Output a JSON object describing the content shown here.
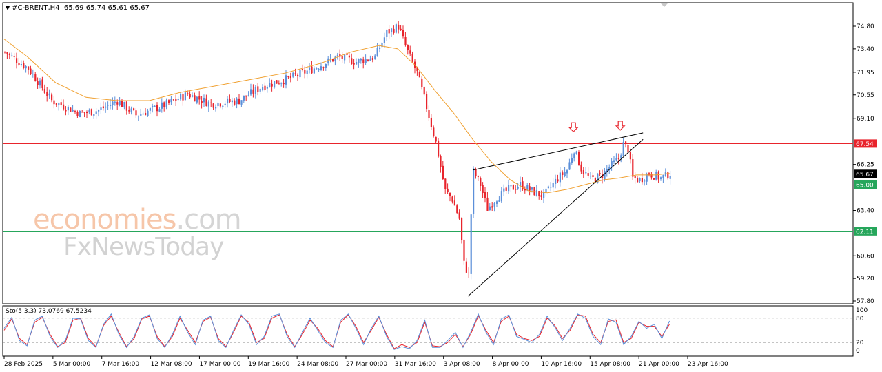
{
  "header": {
    "symbol": "#C-BRENT,H4",
    "ohlc": "65.69 65.74 65.61 65.67"
  },
  "stochastic": {
    "label": "Sto(5,3,3) 73.0769 67.5234",
    "axis_labels": [
      "100",
      "80",
      "20",
      "0"
    ]
  },
  "watermark": {
    "line1_main": "economies",
    "line1_tld": ".com",
    "line2": "FxNewsToday"
  },
  "price_markers": [
    {
      "label": "67.54",
      "value": 67.54,
      "color": "#e8242c"
    },
    {
      "label": "65.67",
      "value": 65.67,
      "color": "#000000"
    },
    {
      "label": "65.00",
      "value": 65.0,
      "color": "#26a65b"
    },
    {
      "label": "62.11",
      "value": 62.11,
      "color": "#26a65b"
    }
  ],
  "chart_data": {
    "type": "candlestick",
    "y_ticks": [
      "74.80",
      "73.40",
      "71.95",
      "70.55",
      "69.10",
      "66.25",
      "63.40",
      "60.60",
      "59.20",
      "57.80"
    ],
    "y_tick_values": [
      74.8,
      73.4,
      71.95,
      70.55,
      69.1,
      66.25,
      63.4,
      60.6,
      59.2,
      57.8
    ],
    "ylim": [
      57.8,
      75.0
    ],
    "x_labels": [
      "28 Feb 2025",
      "5 Mar 00:00",
      "7 Mar 16:00",
      "12 Mar 08:00",
      "17 Mar 00:00",
      "19 Mar 16:00",
      "24 Mar 08:00",
      "27 Mar 00:00",
      "31 Mar 16:00",
      "3 Apr 08:00",
      "8 Apr 00:00",
      "10 Apr 16:00",
      "15 Apr 08:00",
      "21 Apr 00:00",
      "23 Apr 16:00"
    ],
    "horizontal_levels": [
      {
        "value": 67.54,
        "color": "#e8242c"
      },
      {
        "value": 65.67,
        "color": "#c0c0c0"
      },
      {
        "value": 65.0,
        "color": "#26a65b"
      },
      {
        "value": 62.11,
        "color": "#26a65b"
      }
    ],
    "close_path": [
      [
        0,
        73.2
      ],
      [
        10,
        72.2
      ],
      [
        20,
        70.2
      ],
      [
        32,
        69.4
      ],
      [
        40,
        69.6
      ],
      [
        48,
        70.2
      ],
      [
        56,
        69.3
      ],
      [
        68,
        69.9
      ],
      [
        78,
        70.6
      ],
      [
        88,
        70.0
      ],
      [
        100,
        70.2
      ],
      [
        110,
        71.1
      ],
      [
        122,
        71.6
      ],
      [
        132,
        72.2
      ],
      [
        142,
        72.9
      ],
      [
        150,
        72.6
      ],
      [
        158,
        72.9
      ],
      [
        163,
        74.4
      ],
      [
        168,
        74.8
      ],
      [
        172,
        73.2
      ],
      [
        176,
        71.9
      ],
      [
        180,
        69.8
      ],
      [
        184,
        67.6
      ],
      [
        188,
        64.6
      ],
      [
        191,
        64.1
      ],
      [
        194,
        62.9
      ],
      [
        196,
        60.1
      ],
      [
        198,
        59.4
      ],
      [
        199,
        63.2
      ],
      [
        200,
        65.8
      ],
      [
        203,
        65.0
      ],
      [
        206,
        63.5
      ],
      [
        210,
        64.2
      ],
      [
        215,
        64.7
      ],
      [
        220,
        65.0
      ],
      [
        225,
        64.6
      ],
      [
        230,
        64.3
      ],
      [
        236,
        65.4
      ],
      [
        240,
        65.9
      ],
      [
        243,
        67.2
      ],
      [
        246,
        66.0
      ],
      [
        250,
        65.3
      ],
      [
        255,
        65.6
      ],
      [
        258,
        66.1
      ],
      [
        262,
        66.6
      ],
      [
        264,
        67.5
      ],
      [
        266,
        67.2
      ],
      [
        268,
        65.4
      ],
      [
        271,
        65.3
      ],
      [
        275,
        65.7
      ],
      [
        280,
        65.4
      ],
      [
        284,
        65.7
      ]
    ],
    "moving_average": [
      [
        0,
        74.0
      ],
      [
        10,
        72.9
      ],
      [
        22,
        71.3
      ],
      [
        35,
        70.4
      ],
      [
        48,
        70.2
      ],
      [
        62,
        70.2
      ],
      [
        75,
        70.7
      ],
      [
        90,
        71.1
      ],
      [
        105,
        71.5
      ],
      [
        120,
        71.9
      ],
      [
        135,
        72.5
      ],
      [
        148,
        73.2
      ],
      [
        160,
        73.6
      ],
      [
        168,
        73.4
      ],
      [
        176,
        72.3
      ],
      [
        184,
        70.8
      ],
      [
        192,
        69.4
      ],
      [
        200,
        67.8
      ],
      [
        208,
        66.4
      ],
      [
        216,
        65.3
      ],
      [
        224,
        64.6
      ],
      [
        232,
        64.5
      ],
      [
        240,
        64.7
      ],
      [
        248,
        65.0
      ],
      [
        256,
        65.3
      ],
      [
        262,
        65.4
      ],
      [
        270,
        65.6
      ],
      [
        278,
        65.6
      ],
      [
        284,
        65.7
      ]
    ],
    "trendlines": [
      {
        "from": [
          200,
          65.9
        ],
        "to": [
          268,
          68.2
        ]
      },
      {
        "from": [
          198,
          58.1
        ],
        "to": [
          268,
          67.8
        ]
      }
    ],
    "arrows": [
      {
        "x": 243,
        "value": 68.4,
        "color": "#e8242c"
      },
      {
        "x": 263,
        "value": 68.5,
        "color": "#e8242c"
      }
    ],
    "stochastic_series": [
      {
        "color": "#e8242c",
        "values": [
          50,
          78,
          30,
          15,
          70,
          82,
          40,
          10,
          20,
          75,
          80,
          30,
          10,
          62,
          85,
          45,
          10,
          30,
          78,
          85,
          35,
          10,
          35,
          80,
          50,
          20,
          72,
          82,
          30,
          10,
          45,
          85,
          70,
          20,
          30,
          80,
          88,
          40,
          10,
          40,
          75,
          55,
          25,
          10,
          70,
          88,
          60,
          20,
          50,
          82,
          40,
          5,
          15,
          8,
          20,
          70,
          12,
          10,
          20,
          40,
          10,
          40,
          86,
          50,
          20,
          72,
          85,
          40,
          30,
          25,
          35,
          80,
          62,
          30,
          50,
          88,
          85,
          40,
          20,
          72,
          76,
          20,
          30,
          70,
          60,
          60,
          35,
          65
        ]
      },
      {
        "color": "#5b8fd9",
        "values": [
          55,
          82,
          25,
          12,
          75,
          85,
          35,
          8,
          25,
          80,
          78,
          25,
          8,
          65,
          90,
          40,
          8,
          35,
          80,
          88,
          30,
          8,
          40,
          85,
          45,
          15,
          75,
          85,
          25,
          8,
          50,
          88,
          65,
          15,
          35,
          85,
          90,
          35,
          8,
          45,
          80,
          50,
          20,
          8,
          75,
          90,
          55,
          15,
          55,
          85,
          35,
          3,
          10,
          5,
          25,
          75,
          8,
          8,
          25,
          45,
          8,
          45,
          90,
          45,
          15,
          78,
          88,
          35,
          28,
          20,
          40,
          85,
          58,
          25,
          55,
          90,
          80,
          35,
          15,
          78,
          70,
          15,
          35,
          72,
          55,
          65,
          30,
          73
        ]
      }
    ]
  }
}
